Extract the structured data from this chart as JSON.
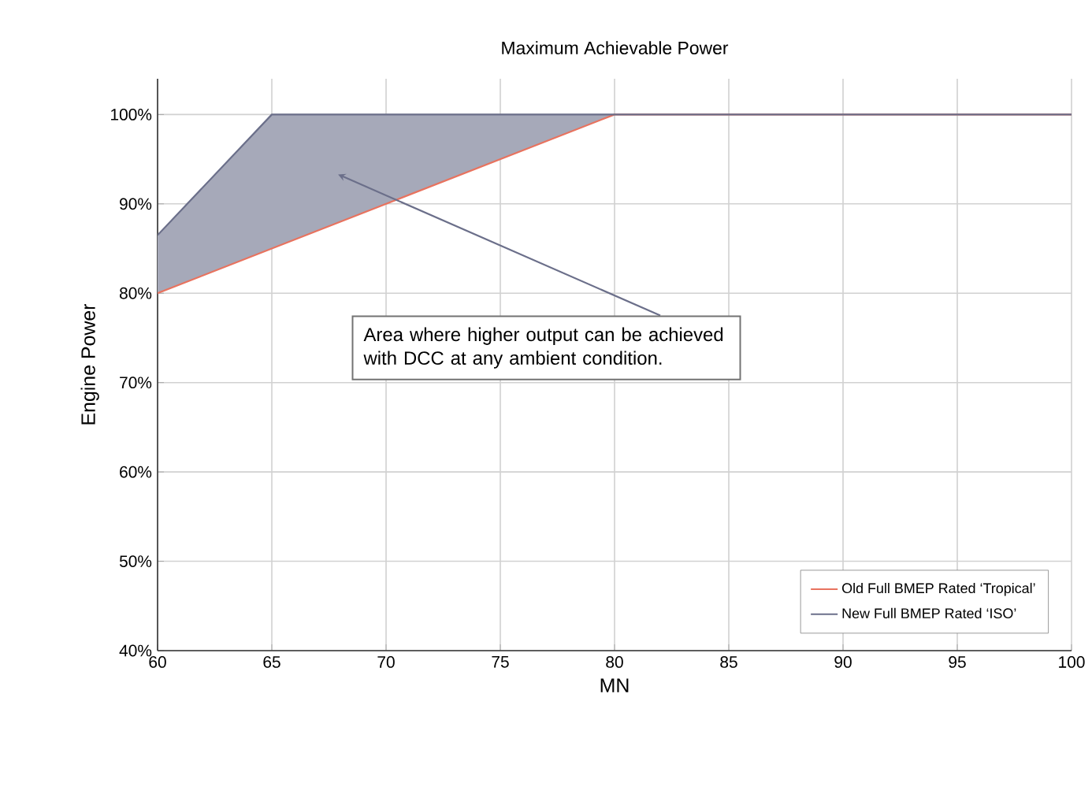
{
  "chart_data": {
    "type": "line",
    "title": "Maximum Achievable Power",
    "xlabel": "MN",
    "ylabel": "Engine Power",
    "x": [
      60,
      65,
      80,
      100
    ],
    "series": [
      {
        "name": "Old Full BMEP Rated ‘Tropical’",
        "color": "#e8735f",
        "values": [
          80,
          85,
          100,
          100
        ]
      },
      {
        "name": "New Full BMEP Rated ‘ISO’",
        "color": "#6b6f8a",
        "values": [
          86.5,
          100,
          100,
          100
        ],
        "lower": [
          80,
          85,
          100,
          100
        ],
        "upper": [
          86.5,
          100,
          100,
          100
        ]
      }
    ],
    "xlim": [
      60,
      100
    ],
    "ylim": [
      40,
      104
    ],
    "xticks": [
      60,
      65,
      70,
      75,
      80,
      85,
      90,
      95,
      100
    ],
    "yticks": [
      {
        "value": 40,
        "label": "40%"
      },
      {
        "value": 50,
        "label": "50%"
      },
      {
        "value": 60,
        "label": "60%"
      },
      {
        "value": 70,
        "label": "70%"
      },
      {
        "value": 80,
        "label": "80%"
      },
      {
        "value": 90,
        "label": "90%"
      },
      {
        "value": 100,
        "label": "100%"
      }
    ],
    "grid": true,
    "legend": "bottom right",
    "marker": "none",
    "line_style": "solid",
    "annotations": [
      "Area where higher output can be achieved with DCC at any ambient condition."
    ]
  }
}
